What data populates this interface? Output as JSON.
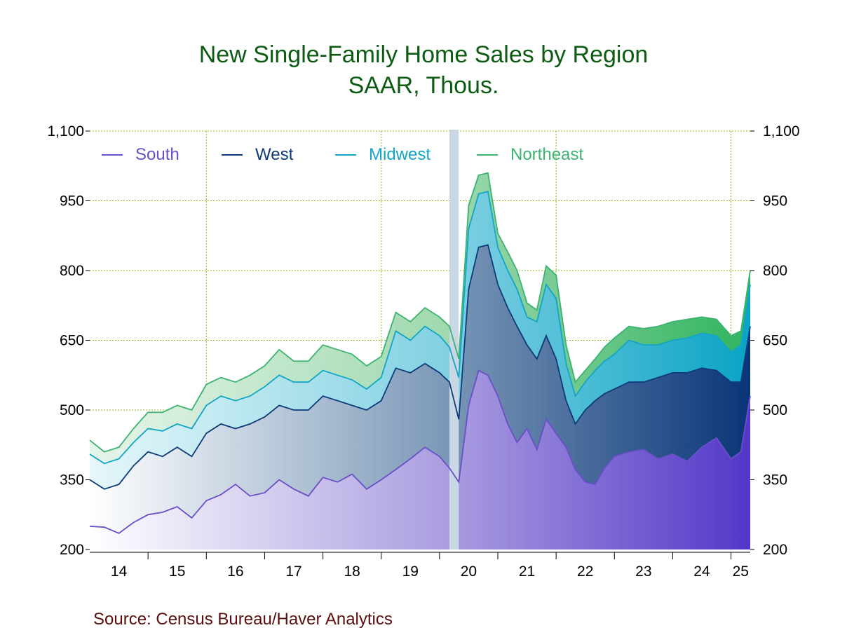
{
  "title_line1": "New Single-Family Home Sales by Region",
  "title_line2": "SAAR, Thous.",
  "source": "Source:  Census Bureau/Haver Analytics",
  "chart_data": {
    "type": "area",
    "stacked": true,
    "ylim": [
      200,
      1100
    ],
    "y_ticks": [
      "1,100",
      "950",
      "800",
      "650",
      "500",
      "350",
      "200"
    ],
    "y_tick_values": [
      1100,
      950,
      800,
      650,
      500,
      350,
      200
    ],
    "x_ticks": [
      "14",
      "15",
      "16",
      "17",
      "18",
      "19",
      "20",
      "21",
      "22",
      "23",
      "24",
      "25"
    ],
    "x_range": [
      2014.0,
      2025.33
    ],
    "recession": [
      2020.17,
      2020.33
    ],
    "legend": [
      "South",
      "West",
      "Midwest",
      "Northeast"
    ],
    "colors": {
      "South": "#6a4fc8",
      "West": "#0d3a78",
      "Midwest": "#13a5c6",
      "Northeast": "#3cb371",
      "grid": "#8ab81c",
      "recession": "#c9d8e4"
    },
    "series": [
      {
        "name": "South",
        "t": [
          2014.0,
          2014.25,
          2014.5,
          2014.75,
          2015.0,
          2015.25,
          2015.5,
          2015.75,
          2016.0,
          2016.25,
          2016.5,
          2016.75,
          2017.0,
          2017.25,
          2017.5,
          2017.75,
          2018.0,
          2018.25,
          2018.5,
          2018.75,
          2019.0,
          2019.25,
          2019.5,
          2019.75,
          2020.0,
          2020.17,
          2020.33,
          2020.5,
          2020.67,
          2020.83,
          2021.0,
          2021.17,
          2021.33,
          2021.5,
          2021.67,
          2021.83,
          2022.0,
          2022.17,
          2022.33,
          2022.5,
          2022.67,
          2022.83,
          2023.0,
          2023.25,
          2023.5,
          2023.75,
          2024.0,
          2024.25,
          2024.5,
          2024.75,
          2025.0,
          2025.17,
          2025.33
        ],
        "values": [
          250,
          248,
          235,
          258,
          275,
          280,
          292,
          268,
          305,
          318,
          340,
          315,
          322,
          350,
          330,
          315,
          355,
          345,
          362,
          330,
          350,
          372,
          395,
          420,
          400,
          375,
          345,
          510,
          585,
          575,
          530,
          470,
          430,
          460,
          415,
          480,
          450,
          420,
          372,
          345,
          340,
          375,
          400,
          410,
          415,
          395,
          405,
          390,
          420,
          440,
          395,
          410,
          530
        ]
      },
      {
        "name": "West",
        "t": [
          2014.0,
          2014.25,
          2014.5,
          2014.75,
          2015.0,
          2015.25,
          2015.5,
          2015.75,
          2016.0,
          2016.25,
          2016.5,
          2016.75,
          2017.0,
          2017.25,
          2017.5,
          2017.75,
          2018.0,
          2018.25,
          2018.5,
          2018.75,
          2019.0,
          2019.25,
          2019.5,
          2019.75,
          2020.0,
          2020.17,
          2020.33,
          2020.5,
          2020.67,
          2020.83,
          2021.0,
          2021.17,
          2021.33,
          2021.5,
          2021.67,
          2021.83,
          2022.0,
          2022.17,
          2022.33,
          2022.5,
          2022.67,
          2022.83,
          2023.0,
          2023.25,
          2023.5,
          2023.75,
          2024.0,
          2024.25,
          2024.5,
          2024.75,
          2025.0,
          2025.17,
          2025.33
        ],
        "values": [
          350,
          330,
          340,
          380,
          410,
          400,
          420,
          400,
          450,
          470,
          460,
          470,
          485,
          510,
          500,
          500,
          530,
          520,
          510,
          500,
          520,
          590,
          580,
          600,
          580,
          560,
          480,
          760,
          850,
          855,
          770,
          720,
          680,
          640,
          610,
          660,
          610,
          520,
          470,
          500,
          520,
          535,
          545,
          560,
          560,
          570,
          580,
          580,
          590,
          585,
          560,
          560,
          680
        ]
      },
      {
        "name": "Midwest",
        "t": [
          2014.0,
          2014.25,
          2014.5,
          2014.75,
          2015.0,
          2015.25,
          2015.5,
          2015.75,
          2016.0,
          2016.25,
          2016.5,
          2016.75,
          2017.0,
          2017.25,
          2017.5,
          2017.75,
          2018.0,
          2018.25,
          2018.5,
          2018.75,
          2019.0,
          2019.25,
          2019.5,
          2019.75,
          2020.0,
          2020.17,
          2020.33,
          2020.5,
          2020.67,
          2020.83,
          2021.0,
          2021.17,
          2021.33,
          2021.5,
          2021.67,
          2021.83,
          2022.0,
          2022.17,
          2022.33,
          2022.5,
          2022.67,
          2022.83,
          2023.0,
          2023.25,
          2023.5,
          2023.75,
          2024.0,
          2024.25,
          2024.5,
          2024.75,
          2025.0,
          2025.17,
          2025.33
        ],
        "values": [
          405,
          385,
          395,
          430,
          460,
          455,
          470,
          460,
          510,
          530,
          520,
          530,
          550,
          575,
          560,
          560,
          585,
          575,
          565,
          545,
          570,
          670,
          650,
          680,
          660,
          635,
          570,
          890,
          965,
          970,
          850,
          800,
          760,
          700,
          690,
          770,
          740,
          600,
          530,
          560,
          585,
          605,
          620,
          650,
          640,
          640,
          650,
          655,
          665,
          660,
          625,
          640,
          770
        ]
      },
      {
        "name": "Northeast",
        "t": [
          2014.0,
          2014.25,
          2014.5,
          2014.75,
          2015.0,
          2015.25,
          2015.5,
          2015.75,
          2016.0,
          2016.25,
          2016.5,
          2016.75,
          2017.0,
          2017.25,
          2017.5,
          2017.75,
          2018.0,
          2018.25,
          2018.5,
          2018.75,
          2019.0,
          2019.25,
          2019.5,
          2019.75,
          2020.0,
          2020.17,
          2020.33,
          2020.5,
          2020.67,
          2020.83,
          2021.0,
          2021.17,
          2021.33,
          2021.5,
          2021.67,
          2021.83,
          2022.0,
          2022.17,
          2022.33,
          2022.5,
          2022.67,
          2022.83,
          2023.0,
          2023.25,
          2023.5,
          2023.75,
          2024.0,
          2024.25,
          2024.5,
          2024.75,
          2025.0,
          2025.17,
          2025.33
        ],
        "values": [
          435,
          410,
          420,
          460,
          495,
          495,
          510,
          500,
          555,
          570,
          560,
          575,
          595,
          630,
          605,
          605,
          640,
          630,
          620,
          595,
          615,
          710,
          690,
          720,
          700,
          680,
          610,
          940,
          1005,
          1010,
          880,
          840,
          800,
          730,
          715,
          810,
          790,
          640,
          560,
          585,
          610,
          635,
          655,
          680,
          675,
          680,
          690,
          695,
          700,
          695,
          660,
          670,
          800
        ]
      }
    ]
  }
}
